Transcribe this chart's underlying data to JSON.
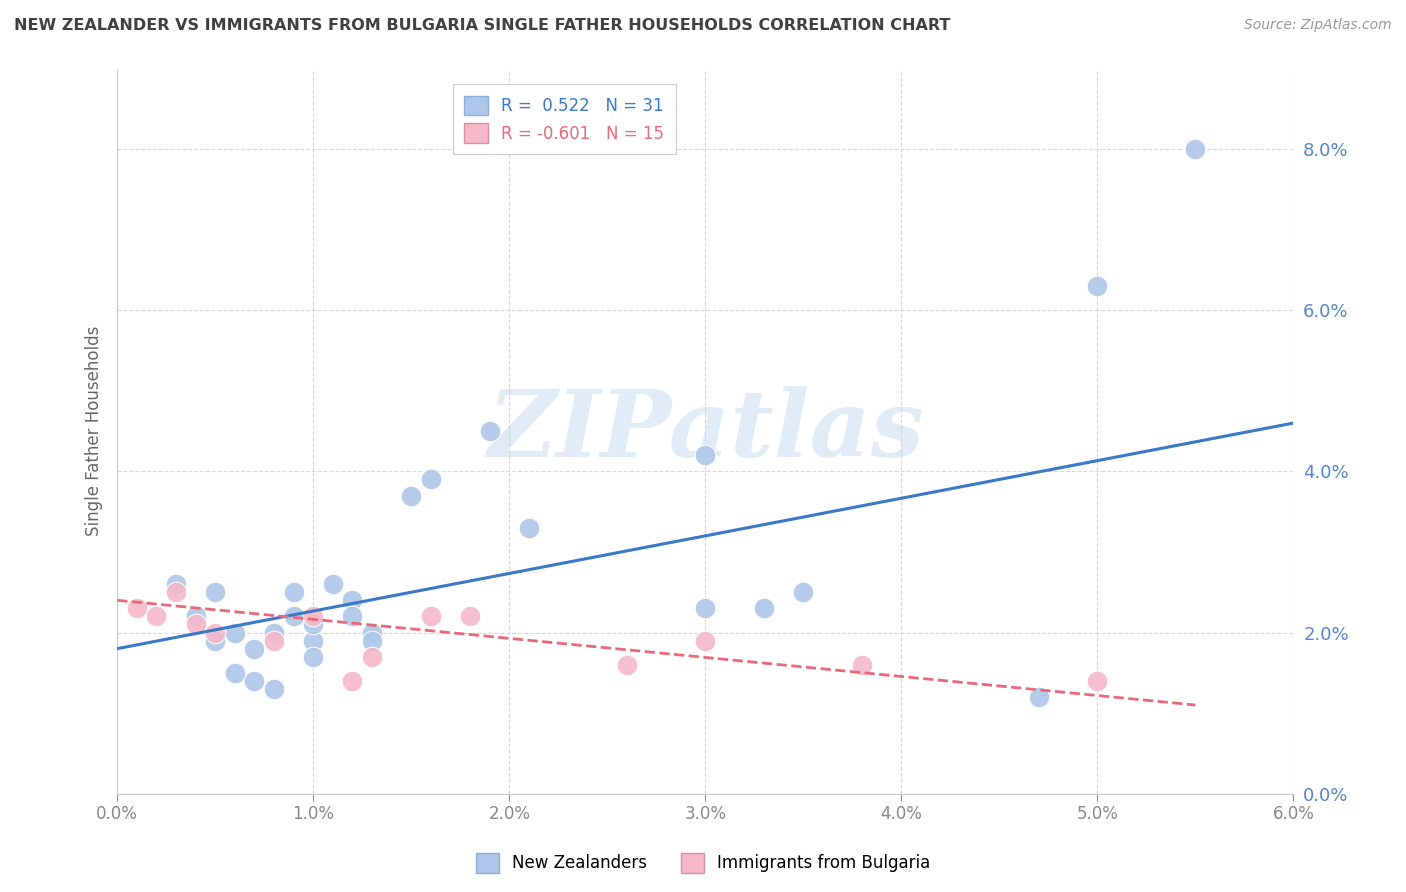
{
  "title": "NEW ZEALANDER VS IMMIGRANTS FROM BULGARIA SINGLE FATHER HOUSEHOLDS CORRELATION CHART",
  "source": "Source: ZipAtlas.com",
  "ylabel": "Single Father Households",
  "xlim": [
    0.0,
    0.06
  ],
  "ylim": [
    0.0,
    0.09
  ],
  "xticks": [
    0.0,
    0.01,
    0.02,
    0.03,
    0.04,
    0.05,
    0.06
  ],
  "yticks": [
    0.0,
    0.02,
    0.04,
    0.06,
    0.08
  ],
  "legend_line1": "R =  0.522   N = 31",
  "legend_line2": "R = -0.601   N = 15",
  "legend_labels": [
    "New Zealanders",
    "Immigrants from Bulgaria"
  ],
  "nz_color": "#aec6e8",
  "bulg_color": "#f4b8c8",
  "nz_line_color": "#3a78c9",
  "bulg_line_color": "#e8687a",
  "nz_scatter": [
    [
      0.003,
      0.026
    ],
    [
      0.004,
      0.022
    ],
    [
      0.005,
      0.019
    ],
    [
      0.005,
      0.025
    ],
    [
      0.006,
      0.015
    ],
    [
      0.006,
      0.02
    ],
    [
      0.007,
      0.014
    ],
    [
      0.007,
      0.018
    ],
    [
      0.008,
      0.013
    ],
    [
      0.008,
      0.02
    ],
    [
      0.009,
      0.025
    ],
    [
      0.009,
      0.022
    ],
    [
      0.01,
      0.019
    ],
    [
      0.01,
      0.017
    ],
    [
      0.01,
      0.021
    ],
    [
      0.011,
      0.026
    ],
    [
      0.012,
      0.024
    ],
    [
      0.012,
      0.022
    ],
    [
      0.013,
      0.02
    ],
    [
      0.013,
      0.019
    ],
    [
      0.015,
      0.037
    ],
    [
      0.016,
      0.039
    ],
    [
      0.019,
      0.045
    ],
    [
      0.021,
      0.033
    ],
    [
      0.03,
      0.042
    ],
    [
      0.03,
      0.023
    ],
    [
      0.033,
      0.023
    ],
    [
      0.035,
      0.025
    ],
    [
      0.047,
      0.012
    ],
    [
      0.05,
      0.063
    ],
    [
      0.055,
      0.08
    ]
  ],
  "bulg_scatter": [
    [
      0.001,
      0.023
    ],
    [
      0.002,
      0.022
    ],
    [
      0.003,
      0.025
    ],
    [
      0.004,
      0.021
    ],
    [
      0.005,
      0.02
    ],
    [
      0.008,
      0.019
    ],
    [
      0.01,
      0.022
    ],
    [
      0.012,
      0.014
    ],
    [
      0.013,
      0.017
    ],
    [
      0.016,
      0.022
    ],
    [
      0.018,
      0.022
    ],
    [
      0.026,
      0.016
    ],
    [
      0.03,
      0.019
    ],
    [
      0.038,
      0.016
    ],
    [
      0.05,
      0.014
    ]
  ],
  "nz_line_x": [
    0.0,
    0.06
  ],
  "nz_line_y": [
    0.018,
    0.046
  ],
  "bulg_line_x": [
    0.0,
    0.055
  ],
  "bulg_line_y": [
    0.024,
    0.011
  ],
  "background_color": "#ffffff",
  "grid_color": "#d0d0d0",
  "title_color": "#404040",
  "axis_tick_color": "#5585cc",
  "ylabel_color": "#666666",
  "watermark_text": "ZIPatlas",
  "watermark_color": "#c5d8ee",
  "watermark_alpha": 0.5
}
